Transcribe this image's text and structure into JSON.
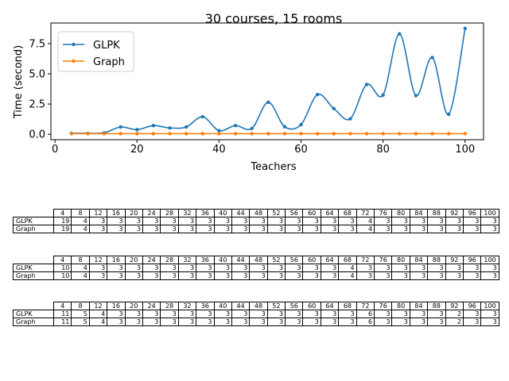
{
  "chart_data": {
    "type": "line",
    "title": "30 courses, 15 rooms",
    "xlabel": "Teachers",
    "ylabel": "Time (second)",
    "xlim": [
      -1,
      104.5
    ],
    "ylim": [
      -0.45,
      9.2
    ],
    "xticks": [
      0,
      20,
      40,
      60,
      80,
      100
    ],
    "xtick_labels": [
      "0",
      "20",
      "40",
      "60",
      "80",
      "100"
    ],
    "yticks": [
      0,
      2.5,
      5,
      7.5
    ],
    "ytick_labels": [
      "0.0",
      "2.5",
      "5.0",
      "7.5"
    ],
    "grid": false,
    "legend_position": "top-left",
    "x": [
      4,
      8,
      12,
      16,
      20,
      24,
      28,
      32,
      36,
      40,
      44,
      48,
      52,
      56,
      60,
      64,
      68,
      72,
      76,
      80,
      84,
      88,
      92,
      96,
      100
    ],
    "series": [
      {
        "name": "GLPK",
        "color": "#1f77b4",
        "values": [
          0.08,
          0.08,
          0.12,
          0.6,
          0.38,
          0.72,
          0.52,
          0.6,
          1.45,
          0.3,
          0.72,
          0.48,
          2.65,
          0.62,
          0.8,
          3.28,
          2.12,
          1.28,
          4.12,
          3.25,
          8.3,
          3.2,
          6.35,
          1.65,
          8.75
        ]
      },
      {
        "name": "Graph",
        "color": "#ff7f0e",
        "values": [
          0.05,
          0.05,
          0.05,
          0.05,
          0.05,
          0.05,
          0.05,
          0.05,
          0.05,
          0.05,
          0.05,
          0.05,
          0.05,
          0.05,
          0.05,
          0.05,
          0.05,
          0.05,
          0.05,
          0.05,
          0.05,
          0.05,
          0.05,
          0.05,
          0.05
        ]
      }
    ]
  },
  "tables": [
    {
      "header": [
        "4",
        "8",
        "12",
        "16",
        "20",
        "24",
        "28",
        "32",
        "36",
        "40",
        "44",
        "48",
        "52",
        "56",
        "60",
        "64",
        "68",
        "72",
        "76",
        "80",
        "84",
        "88",
        "92",
        "96",
        "100"
      ],
      "rows": [
        {
          "label": "GLPK",
          "values": [
            "19",
            "4",
            "3",
            "3",
            "3",
            "3",
            "3",
            "3",
            "3",
            "3",
            "3",
            "3",
            "3",
            "3",
            "3",
            "3",
            "3",
            "4",
            "3",
            "3",
            "3",
            "3",
            "3",
            "3",
            "3"
          ]
        },
        {
          "label": "Graph",
          "values": [
            "19",
            "4",
            "3",
            "3",
            "3",
            "3",
            "3",
            "3",
            "3",
            "3",
            "3",
            "3",
            "3",
            "3",
            "3",
            "3",
            "3",
            "4",
            "3",
            "3",
            "3",
            "3",
            "3",
            "3",
            "3"
          ]
        }
      ]
    },
    {
      "header": [
        "4",
        "8",
        "12",
        "16",
        "20",
        "24",
        "28",
        "32",
        "36",
        "40",
        "44",
        "48",
        "52",
        "56",
        "60",
        "64",
        "68",
        "72",
        "76",
        "80",
        "84",
        "88",
        "92",
        "96",
        "100"
      ],
      "rows": [
        {
          "label": "GLPK",
          "values": [
            "10",
            "4",
            "3",
            "3",
            "3",
            "3",
            "3",
            "3",
            "3",
            "3",
            "3",
            "3",
            "3",
            "3",
            "3",
            "3",
            "4",
            "3",
            "3",
            "3",
            "3",
            "3",
            "3",
            "3",
            "3"
          ]
        },
        {
          "label": "Graph",
          "values": [
            "10",
            "4",
            "3",
            "3",
            "3",
            "3",
            "3",
            "3",
            "3",
            "3",
            "3",
            "3",
            "3",
            "3",
            "3",
            "3",
            "4",
            "3",
            "3",
            "3",
            "3",
            "3",
            "3",
            "3",
            "3"
          ]
        }
      ]
    },
    {
      "header": [
        "4",
        "8",
        "12",
        "16",
        "20",
        "24",
        "28",
        "32",
        "36",
        "40",
        "44",
        "48",
        "52",
        "56",
        "60",
        "64",
        "68",
        "72",
        "76",
        "80",
        "84",
        "88",
        "92",
        "96",
        "100"
      ],
      "rows": [
        {
          "label": "GLPK",
          "values": [
            "11",
            "5",
            "4",
            "3",
            "3",
            "3",
            "3",
            "3",
            "3",
            "3",
            "3",
            "3",
            "3",
            "3",
            "3",
            "3",
            "3",
            "6",
            "3",
            "3",
            "3",
            "3",
            "2",
            "3",
            "3"
          ]
        },
        {
          "label": "Graph",
          "values": [
            "11",
            "5",
            "4",
            "3",
            "3",
            "3",
            "3",
            "3",
            "3",
            "3",
            "3",
            "3",
            "3",
            "3",
            "3",
            "3",
            "3",
            "6",
            "3",
            "3",
            "3",
            "3",
            "2",
            "3",
            "3"
          ]
        }
      ]
    }
  ]
}
